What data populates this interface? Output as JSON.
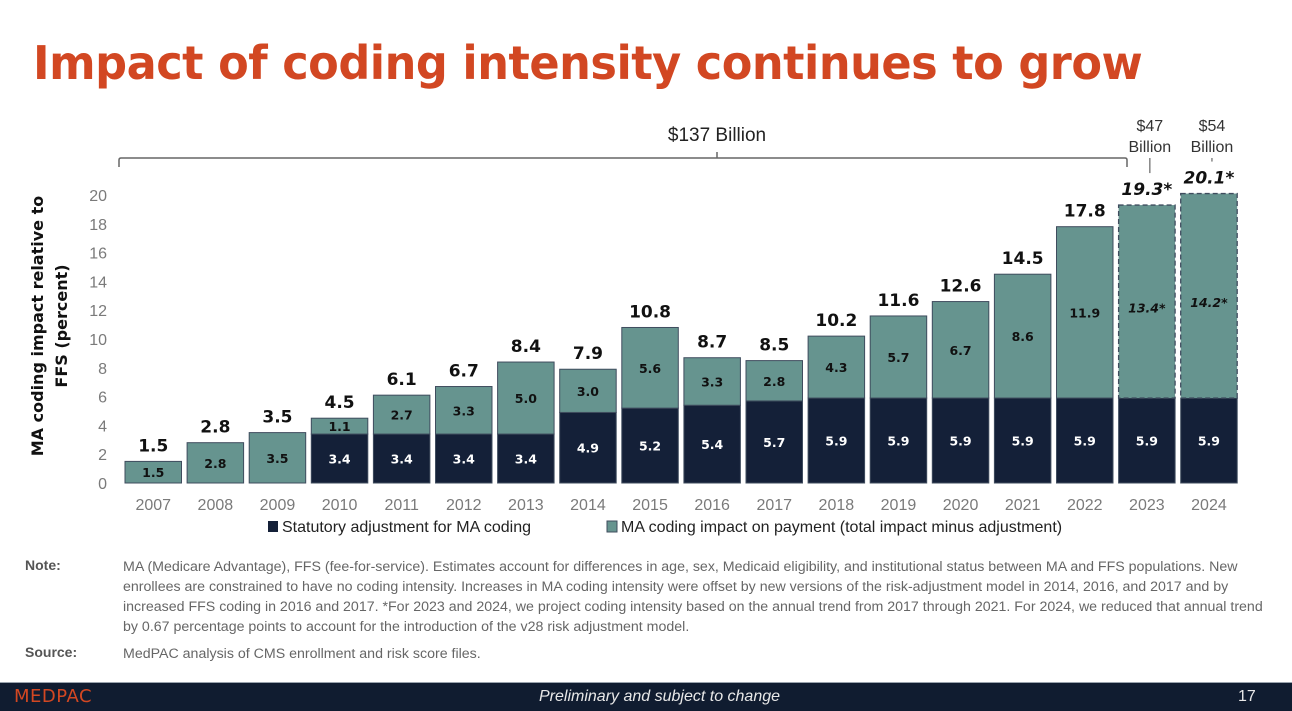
{
  "slide": {
    "title": "Impact of coding intensity continues to grow",
    "note_label": "Note:",
    "note_text": "MA (Medicare Advantage), FFS (fee-for-service). Estimates account for differences in age, sex, Medicaid eligibility, and institutional status between MA and FFS populations. New enrollees are constrained to have no coding intensity. Increases in MA coding intensity were offset by new versions of the risk-adjustment model in 2014, 2016, and 2017 and by increased FFS coding in 2016 and 2017. *For 2023 and 2024, we project coding intensity based on the annual trend from 2017 through 2021. For 2024, we reduced that annual trend by 0.67 percentage points to account for the introduction of the v28 risk adjustment model.",
    "source_label": "Source:",
    "source_text": "MedPAC analysis of CMS enrollment and risk score files.",
    "footer_logo": "MEDPAC",
    "footer_text": "Preliminary and subject to change",
    "page_number": "17"
  },
  "chart_data": {
    "type": "bar",
    "stacked": true,
    "title": "Impact of coding intensity continues to grow",
    "xlabel": "",
    "ylabel": "MA coding  impact relative to FFS (percent)",
    "ylim": [
      0,
      20
    ],
    "yticks": [
      0,
      2,
      4,
      6,
      8,
      10,
      12,
      14,
      16,
      18,
      20
    ],
    "grid": false,
    "legend_position": "bottom",
    "categories": [
      "2007",
      "2008",
      "2009",
      "2010",
      "2011",
      "2012",
      "2013",
      "2014",
      "2015",
      "2016",
      "2017",
      "2018",
      "2019",
      "2020",
      "2021",
      "2022",
      "2023",
      "2024"
    ],
    "series": [
      {
        "name": "Statutory adjustment for MA coding",
        "color": "#142038",
        "values": [
          0,
          0,
          0,
          3.4,
          3.4,
          3.4,
          3.4,
          4.9,
          5.2,
          5.4,
          5.7,
          5.9,
          5.9,
          5.9,
          5.9,
          5.9,
          5.9,
          5.9
        ],
        "labels": [
          "",
          "",
          "",
          "3.4",
          "3.4",
          "3.4",
          "3.4",
          "4.9",
          "5.2",
          "5.4",
          "5.7",
          "5.9",
          "5.9",
          "5.9",
          "5.9",
          "5.9",
          "5.9",
          "5.9"
        ]
      },
      {
        "name": "MA coding impact on payment (total impact minus adjustment)",
        "color": "#66948f",
        "values": [
          1.5,
          2.8,
          3.5,
          1.1,
          2.7,
          3.3,
          5.0,
          3.0,
          5.6,
          3.3,
          2.8,
          4.3,
          5.7,
          6.7,
          8.6,
          11.9,
          13.4,
          14.2
        ],
        "labels": [
          "1.5",
          "2.8",
          "3.5",
          "1.1",
          "2.7",
          "3.3",
          "5.0",
          "3.0",
          "5.6",
          "3.3",
          "2.8",
          "4.3",
          "5.7",
          "6.7",
          "8.6",
          "11.9",
          "13.4*",
          "14.2*"
        ]
      }
    ],
    "totals": [
      1.5,
      2.8,
      3.5,
      4.5,
      6.1,
      6.7,
      8.4,
      7.9,
      10.8,
      8.7,
      8.5,
      10.2,
      11.6,
      12.6,
      14.5,
      17.8,
      19.3,
      20.1
    ],
    "total_labels": [
      "1.5",
      "2.8",
      "3.5",
      "4.5",
      "6.1",
      "6.7",
      "8.4",
      "7.9",
      "10.8",
      "8.7",
      "8.5",
      "10.2",
      "11.6",
      "12.6",
      "14.5",
      "17.8",
      "19.3*",
      "20.1*"
    ],
    "projected": [
      false,
      false,
      false,
      false,
      false,
      false,
      false,
      false,
      false,
      false,
      false,
      false,
      false,
      false,
      false,
      false,
      true,
      true
    ],
    "annotations": [
      {
        "text": "$137 Billion",
        "span": [
          "2007",
          "2022"
        ],
        "type": "bracket"
      },
      {
        "text_lines": [
          "$47",
          "Billion"
        ],
        "category": "2023",
        "type": "callout"
      },
      {
        "text_lines": [
          "$54",
          "Billion"
        ],
        "category": "2024",
        "type": "callout"
      }
    ]
  }
}
